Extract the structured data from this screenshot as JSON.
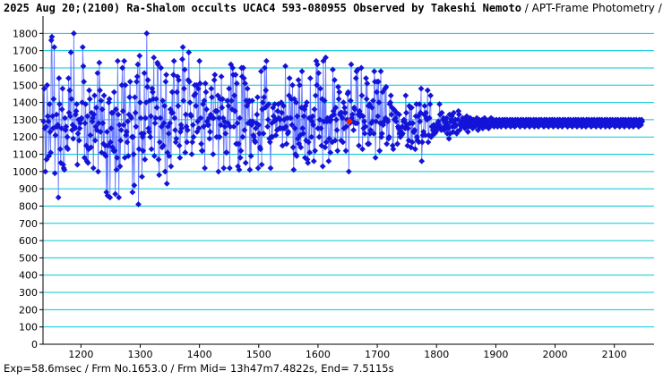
{
  "title": "2025 Aug 20;(2100) Ra-Shalom occults UCAC4 593-080955 Observed by Takeshi Nemoto",
  "subtitle": " / APT-Frame Photometry /",
  "footer": "Exp=58.6msec / Frm No.1653.0 / Frm Mid= 13h47m7.4822s,  End= 7.5115s",
  "colors": {
    "background": "#ffffff",
    "grid": "#00c8d8",
    "line": "#6a7cff",
    "point": "#1414d8",
    "highlight": "#ff2000",
    "axis": "#000000"
  },
  "chart_data": {
    "type": "scatter",
    "x_label": "",
    "y_label": "",
    "xlim": [
      1136,
      2167
    ],
    "ylim": [
      0,
      1900
    ],
    "x_ticks": [
      1200,
      1300,
      1400,
      1500,
      1600,
      1700,
      1800,
      1900,
      2000,
      2100
    ],
    "y_ticks": [
      0,
      100,
      200,
      300,
      400,
      500,
      600,
      700,
      800,
      900,
      1000,
      1100,
      1200,
      1300,
      1400,
      1500,
      1600,
      1700,
      1800
    ],
    "grid": true,
    "connected": true,
    "highlight_point": {
      "x": 1653,
      "y": 1290
    },
    "series": [
      {
        "frame_start": 1137,
        "frame_step": 1,
        "values": [
          1290,
          1480,
          1250,
          1000,
          1260,
          1070,
          1500,
          1320,
          1290,
          1090,
          1390,
          1230,
          1110,
          1760,
          1780,
          1320,
          1250,
          1420,
          1720,
          990,
          1210,
          1260,
          1330,
          1260,
          1270,
          850,
          1540,
          1390,
          1130,
          1050,
          1250,
          1360,
          1480,
          1040,
          1020,
          1010,
          1310,
          1240,
          1260,
          1140,
          1200,
          1130,
          1540,
          1340,
          1470,
          1320,
          1690,
          1420,
          1240,
          1270,
          1190,
          1800,
          1260,
          1250,
          1330,
          1350,
          1390,
          1040,
          1220,
          1300,
          1180,
          1250,
          1280,
          1300,
          1310,
          1400,
          1720,
          1610,
          1520,
          1080,
          1280,
          1390,
          1150,
          1060,
          1320,
          1050,
          1130,
          1470,
          1420,
          1210,
          1140,
          1340,
          1290,
          1310,
          1020,
          1330,
          1440,
          1180,
          1260,
          1370,
          1240,
          1570,
          1000,
          1280,
          1630,
          1470,
          1230,
          1410,
          1110,
          1360,
          1280,
          1160,
          1440,
          1100,
          1150,
          1090,
          880,
          1230,
          860,
          1150,
          1400,
          1420,
          850,
          1170,
          1250,
          1340,
          1140,
          1340,
          1120,
          1460,
          1120,
          870,
          1360,
          1010,
          1080,
          1640,
          1330,
          850,
          1270,
          1030,
          1180,
          1240,
          1500,
          1600,
          1350,
          1270,
          1640,
          1080,
          1500,
          1210,
          1230,
          1170,
          1290,
          1090,
          1330,
          1430,
          1520,
          1320,
          1310,
          1200,
          880,
          1200,
          1100,
          920,
          1430,
          1340,
          1260,
          1520,
          1550,
          1620,
          810,
          1130,
          1670,
          1400,
          1310,
          1220,
          970,
          1200,
          1120,
          1220,
          1570,
          1070,
          1310,
          1400,
          1800,
          1490,
          1530,
          1250,
          1230,
          1410,
          1200,
          1320,
          1130,
          1480,
          1460,
          1420,
          1660,
          1090,
          1280,
          1310,
          1420,
          1370,
          1630,
          1620,
          1070,
          980,
          1170,
          1310,
          1600,
          1260,
          1140,
          1410,
          1150,
          1280,
          1380,
          1000,
          1520,
          1560,
          930,
          1110,
          1260,
          1220,
          1090,
          1280,
          1360,
          1030,
          1340,
          1460,
          1340,
          1560,
          1640,
          1310,
          1240,
          1170,
          1190,
          1460,
          1550,
          1380,
          1530,
          1150,
          1080,
          1230,
          1270,
          1250,
          1650,
          1720,
          1410,
          1480,
          1590,
          1110,
          1330,
          1260,
          1170,
          1240,
          1530,
          1690,
          1520,
          1400,
          1330,
          1320,
          1100,
          1170,
          1270,
          1200,
          1440,
          1500,
          1450,
          1380,
          1500,
          1230,
          1290,
          1480,
          1250,
          1640,
          1510,
          1310,
          1160,
          1120,
          1120,
          1390,
          1260,
          1410,
          1020,
          1510,
          1460,
          1360,
          1290,
          1270,
          1270,
          1310,
          1190,
          1230,
          1330,
          1480,
          1430,
          1310,
          1100,
          1310,
          1530,
          1560,
          1350,
          1350,
          1200,
          1350,
          1440,
          1000,
          1310,
          1200,
          1420,
          1270,
          1550,
          1370,
          1420,
          1310,
          1020,
          1290,
          1260,
          1220,
          1110,
          1110,
          1410,
          1280,
          1380,
          1480,
          1020,
          1260,
          1620,
          1410,
          1360,
          1600,
          1560,
          1260,
          1440,
          1350,
          1560,
          1160,
          1510,
          1280,
          1030,
          1160,
          1010,
          1310,
          1080,
          1120,
          1600,
          1550,
          1200,
          1600,
          1540,
          1240,
          1510,
          1050,
          1410,
          1380,
          1480,
          1280,
          1400,
          1410,
          1010,
          1290,
          1090,
          1270,
          1410,
          1290,
          1210,
          1200,
          1180,
          1170,
          1250,
          1280,
          1330,
          1430,
          1020,
          1270,
          1220,
          1140,
          1130,
          1580,
          1040,
          1360,
          1400,
          1220,
          1430,
          1600,
          1370,
          1470,
          1640,
          1380,
          1260,
          1300,
          1390,
          1190,
          1170,
          1020,
          1200,
          1280,
          1200,
          1370,
          1320,
          1290,
          1390,
          1300,
          1210,
          1300,
          1240,
          1350,
          1390,
          1310,
          1250,
          1300,
          1250,
          1400,
          1340,
          1150,
          1250,
          1380,
          1300,
          1250,
          1610,
          1260,
          1160,
          1310,
          1220,
          1230,
          1440,
          1540,
          1310,
          1310,
          1420,
          1270,
          1500,
          1140,
          1010,
          1420,
          1250,
          1100,
          1400,
          1090,
          1320,
          1190,
          1530,
          1160,
          1500,
          1210,
          1140,
          1370,
          1580,
          1250,
          1220,
          1320,
          1360,
          1080,
          1380,
          1180,
          1400,
          1070,
          1050,
          1170,
          1310,
          1110,
          1540,
          1310,
          1200,
          1290,
          1320,
          1270,
          1060,
          1360,
          1120,
          1440,
          1640,
          1500,
          1620,
          1250,
          1570,
          1200,
          1300,
          1480,
          1250,
          1150,
          1420,
          1030,
          1640,
          1290,
          1410,
          1140,
          1660,
          1170,
          1290,
          1310,
          1300,
          1060,
          1190,
          1290,
          1110,
          1300,
          1320,
          1170,
          1590,
          1350,
          1330,
          1530,
          1180,
          1370,
          1300,
          1240,
          1120,
          1490,
          1420,
          1460,
          1330,
          1340,
          1180,
          1340,
          1310,
          1170,
          1400,
          1250,
          1370,
          1340,
          1120,
          1260,
          1300,
          1450,
          1460,
          1000,
          1290,
          1280,
          1410,
          1620,
          1310,
          1330,
          1290,
          1240,
          1370,
          1360,
          1280,
          1540,
          1580,
          1280,
          1590,
          1330,
          1150,
          1350,
          1320,
          1330,
          1600,
          1440,
          1130,
          1320,
          1250,
          1290,
          1220,
          1260,
          1540,
          1420,
          1510,
          1160,
          1380,
          1160,
          1390,
          1220,
          1240,
          1280,
          1370,
          1290,
          1410,
          1220,
          1580,
          1520,
          1080,
          1290,
          1460,
          1520,
          1320,
          1520,
          1400,
          1120,
          1280,
          1580,
          1200,
          1220,
          1460,
          1270,
          1290,
          1290,
          1480,
          1310,
          1490,
          1160,
          1300,
          1290,
          1190,
          1200,
          1390,
          1400,
          1440,
          1330,
          1370,
          1150,
          1130,
          1360,
          1300,
          1350,
          1310,
          1290,
          1340,
          1160,
          1260,
          1250,
          1330,
          1220,
          1200,
          1230,
          1210,
          1260,
          1220,
          1290,
          1300,
          1290,
          1250,
          1440,
          1340,
          1270,
          1150,
          1250,
          1180,
          1380,
          1280,
          1370,
          1140,
          1370,
          1170,
          1280,
          1230,
          1230,
          1240,
          1130,
          1320,
          1390,
          1200,
          1180,
          1320,
          1170,
          1390,
          1290,
          1340,
          1480,
          1060,
          1170,
          1210,
          1230,
          1330,
          1380,
          1210,
          1340,
          1310,
          1300,
          1470,
          1170,
          1210,
          1310,
          1390,
          1440,
          1200,
          1260,
          1210,
          1240,
          1270,
          1250,
          1220,
          1250,
          1230,
          1240,
          1260,
          1280,
          1290,
          1270,
          1390,
          1330,
          1250,
          1240,
          1340,
          1250,
          1300,
          1310,
          1240,
          1260,
          1280,
          1290,
          1310,
          1220,
          1270,
          1250,
          1190,
          1330,
          1220,
          1290,
          1300,
          1320,
          1260,
          1230,
          1340,
          1280,
          1260,
          1300,
          1270,
          1220,
          1230,
          1300,
          1350,
          1330,
          1240,
          1270,
          1280,
          1260,
          1290,
          1310,
          1260,
          1290,
          1280,
          1250,
          1270,
          1300,
          1320,
          1290,
          1230,
          1260,
          1280,
          1300,
          1310,
          1260,
          1290,
          1270,
          1250,
          1300,
          1290,
          1280,
          1260,
          1300,
          1270,
          1310,
          1280,
          1240,
          1290,
          1300,
          1260,
          1280,
          1290,
          1270,
          1300,
          1250,
          1280,
          1290,
          1310,
          1270,
          1260,
          1300,
          1280,
          1290,
          1270,
          1250,
          1300,
          1260,
          1280,
          1310,
          1290,
          1270,
          1280,
          1300,
          1260,
          1290,
          1280,
          1270,
          1300,
          1290,
          1260,
          1280,
          1270,
          1300,
          1290,
          1280,
          1260,
          1270,
          1300,
          1290,
          1280,
          1270,
          1300,
          1290,
          1260,
          1280,
          1300,
          1270,
          1290,
          1280,
          1270,
          1300,
          1260,
          1290,
          1280,
          1300,
          1270,
          1290,
          1280,
          1260,
          1300,
          1290,
          1270,
          1280,
          1300,
          1290,
          1270,
          1280,
          1260,
          1300,
          1290,
          1280,
          1270,
          1300,
          1290,
          1280,
          1260,
          1270,
          1300,
          1290,
          1280,
          1270,
          1300,
          1290,
          1260,
          1280,
          1300,
          1270,
          1290,
          1280,
          1270,
          1300,
          1260,
          1290,
          1280,
          1300,
          1270,
          1290,
          1280,
          1260,
          1300,
          1290,
          1270,
          1280,
          1300,
          1290,
          1270,
          1280,
          1260,
          1300,
          1290,
          1280,
          1270,
          1300,
          1290,
          1280,
          1260,
          1270,
          1300,
          1290,
          1280,
          1270,
          1300,
          1290,
          1260,
          1280,
          1300,
          1270,
          1290,
          1280,
          1270,
          1300,
          1260,
          1290,
          1280,
          1300,
          1270,
          1290,
          1280,
          1260,
          1300,
          1290,
          1270,
          1280,
          1300,
          1290,
          1270,
          1280,
          1260,
          1300,
          1290,
          1280,
          1270,
          1300,
          1290,
          1280,
          1260,
          1270,
          1300,
          1290,
          1280,
          1270,
          1300,
          1290,
          1260,
          1280,
          1300,
          1270,
          1290,
          1280,
          1270,
          1300,
          1260,
          1290,
          1280,
          1300,
          1270,
          1290,
          1280,
          1260,
          1300,
          1290,
          1270,
          1280,
          1300,
          1290,
          1270,
          1280,
          1260,
          1300,
          1290,
          1280,
          1270,
          1300,
          1290,
          1280,
          1260,
          1270,
          1300,
          1290,
          1280,
          1270,
          1300,
          1290,
          1260,
          1280,
          1300,
          1270,
          1290,
          1280,
          1270,
          1300,
          1260,
          1290,
          1280,
          1300,
          1270,
          1290,
          1280,
          1260,
          1300,
          1290,
          1270,
          1280,
          1300,
          1290,
          1270,
          1280,
          1260,
          1300,
          1290,
          1280,
          1270,
          1300,
          1290,
          1280,
          1260,
          1270,
          1300,
          1290,
          1280,
          1270,
          1300,
          1290,
          1260,
          1280,
          1300,
          1270,
          1290,
          1280,
          1270,
          1300,
          1260,
          1290,
          1280,
          1300,
          1270,
          1290,
          1280,
          1260,
          1300,
          1290,
          1270,
          1280,
          1300,
          1290,
          1270,
          1280,
          1260,
          1300,
          1290,
          1280,
          1270,
          1300,
          1290
        ]
      }
    ]
  }
}
